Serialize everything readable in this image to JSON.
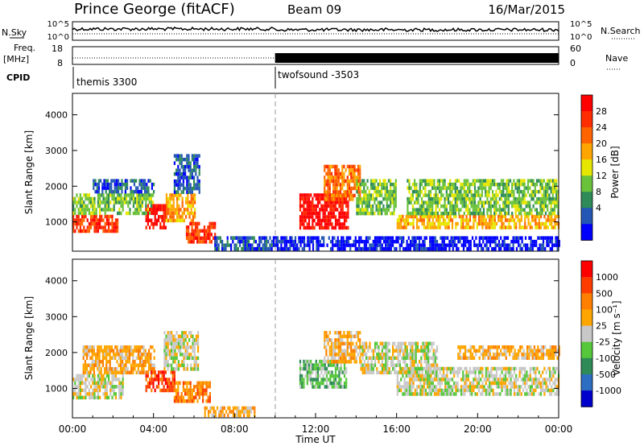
{
  "header": {
    "title": "Prince George (fitACF)",
    "beam": "Beam 09",
    "date": "16/Mar/2015"
  },
  "top_panels": {
    "nsky_label": "N.Sky",
    "nsearch_label": "N.Search",
    "count_ticks": [
      "10^5",
      "10^0"
    ],
    "freq_label_1": "Freq.",
    "freq_label_2": "[MHz]",
    "freq_ticks": [
      "18",
      "8"
    ],
    "nave_ticks": [
      "60",
      "0"
    ],
    "nave_label": "Nave",
    "cpid_label": "CPID",
    "cpid_segments": [
      {
        "name": "themis 3300",
        "start_h": 0,
        "end_h": 10
      },
      {
        "name": "twofsound -3503",
        "start_h": 10,
        "end_h": 24
      }
    ]
  },
  "colors": {
    "power": [
      "#0000ff",
      "#2457b5",
      "#2e8b57",
      "#6ac13a",
      "#e6e600",
      "#ffa500",
      "#ff6400",
      "#ff2d00",
      "#ff0000"
    ],
    "velocity": [
      "#0000cd",
      "#2d6ec2",
      "#2e8b57",
      "#55c73a",
      "#c8c8c8",
      "#ffa500",
      "#ff7f00",
      "#ff3c00",
      "#ff0000"
    ]
  },
  "chart_data": [
    {
      "type": "heatmap",
      "panel": "power",
      "ylabel": "Slant Range [km]",
      "yticks": [
        "4000",
        "3000",
        "2000",
        "1000"
      ],
      "ylim": [
        180,
        4600
      ],
      "xlim": [
        0,
        24
      ],
      "colorbar_label": "Power [dB]",
      "colorbar_ticks": [
        "28",
        "24",
        "20",
        "16",
        "12",
        "8",
        "4"
      ],
      "regions": [
        {
          "t0": 0.0,
          "t1": 2.2,
          "r0": 700,
          "r1": 1200,
          "level": 7
        },
        {
          "t0": 0.0,
          "t1": 4.0,
          "r0": 1200,
          "r1": 1800,
          "level": 3
        },
        {
          "t0": 1.0,
          "t1": 4.0,
          "r0": 1800,
          "r1": 2200,
          "level": 1
        },
        {
          "t0": 3.6,
          "t1": 4.6,
          "r0": 850,
          "r1": 1500,
          "level": 8
        },
        {
          "t0": 4.6,
          "t1": 6.0,
          "r0": 1000,
          "r1": 1800,
          "level": 5
        },
        {
          "t0": 5.0,
          "t1": 6.3,
          "r0": 1800,
          "r1": 2900,
          "level": 1
        },
        {
          "t0": 5.6,
          "t1": 7.0,
          "r0": 400,
          "r1": 1000,
          "level": 7
        },
        {
          "t0": 7.0,
          "t1": 10.0,
          "r0": 200,
          "r1": 600,
          "level": 1
        },
        {
          "t0": 11.2,
          "t1": 13.6,
          "r0": 800,
          "r1": 1800,
          "level": 8
        },
        {
          "t0": 12.4,
          "t1": 14.2,
          "r0": 1600,
          "r1": 2600,
          "level": 6
        },
        {
          "t0": 14.0,
          "t1": 16.0,
          "r0": 1200,
          "r1": 2200,
          "level": 3
        },
        {
          "t0": 16.0,
          "t1": 24.0,
          "r0": 800,
          "r1": 1200,
          "level": 5
        },
        {
          "t0": 16.5,
          "t1": 24.0,
          "r0": 1200,
          "r1": 2200,
          "level": 3
        },
        {
          "t0": 10.0,
          "t1": 24.0,
          "r0": 200,
          "r1": 600,
          "level": 0
        }
      ]
    },
    {
      "type": "heatmap",
      "panel": "velocity",
      "ylabel": "Slant Range [km]",
      "yticks": [
        "4000",
        "3000",
        "2000",
        "1000"
      ],
      "ylim": [
        180,
        4600
      ],
      "xlim": [
        0,
        24
      ],
      "xlabel": "Time UT",
      "xticks": [
        "00:00",
        "04:00",
        "08:00",
        "12:00",
        "16:00",
        "20:00",
        "00:00"
      ],
      "colorbar_label": "Velocity [m s⁻¹]",
      "colorbar_ticks": [
        "1000",
        "500",
        "100",
        "25",
        "-25",
        "-100",
        "-500",
        "-1000"
      ],
      "regions": [
        {
          "t0": 0.0,
          "t1": 2.5,
          "r0": 750,
          "r1": 1400,
          "level": 4
        },
        {
          "t0": 0.5,
          "t1": 4.0,
          "r0": 1400,
          "r1": 2200,
          "level": 5
        },
        {
          "t0": 3.6,
          "t1": 5.0,
          "r0": 900,
          "r1": 1500,
          "level": 7
        },
        {
          "t0": 4.5,
          "t1": 6.2,
          "r0": 1500,
          "r1": 2600,
          "level": 4
        },
        {
          "t0": 5.0,
          "t1": 6.8,
          "r0": 600,
          "r1": 1200,
          "level": 6
        },
        {
          "t0": 6.5,
          "t1": 9.0,
          "r0": 200,
          "r1": 500,
          "level": 5
        },
        {
          "t0": 11.2,
          "t1": 13.5,
          "r0": 1000,
          "r1": 1800,
          "level": 3
        },
        {
          "t0": 12.4,
          "t1": 14.2,
          "r0": 1700,
          "r1": 2600,
          "level": 5
        },
        {
          "t0": 14.2,
          "t1": 18.0,
          "r0": 1400,
          "r1": 2300,
          "level": 4
        },
        {
          "t0": 16.0,
          "t1": 24.0,
          "r0": 800,
          "r1": 1600,
          "level": 4
        },
        {
          "t0": 19.0,
          "t1": 24.0,
          "r0": 1800,
          "r1": 2200,
          "level": 5
        }
      ]
    }
  ]
}
